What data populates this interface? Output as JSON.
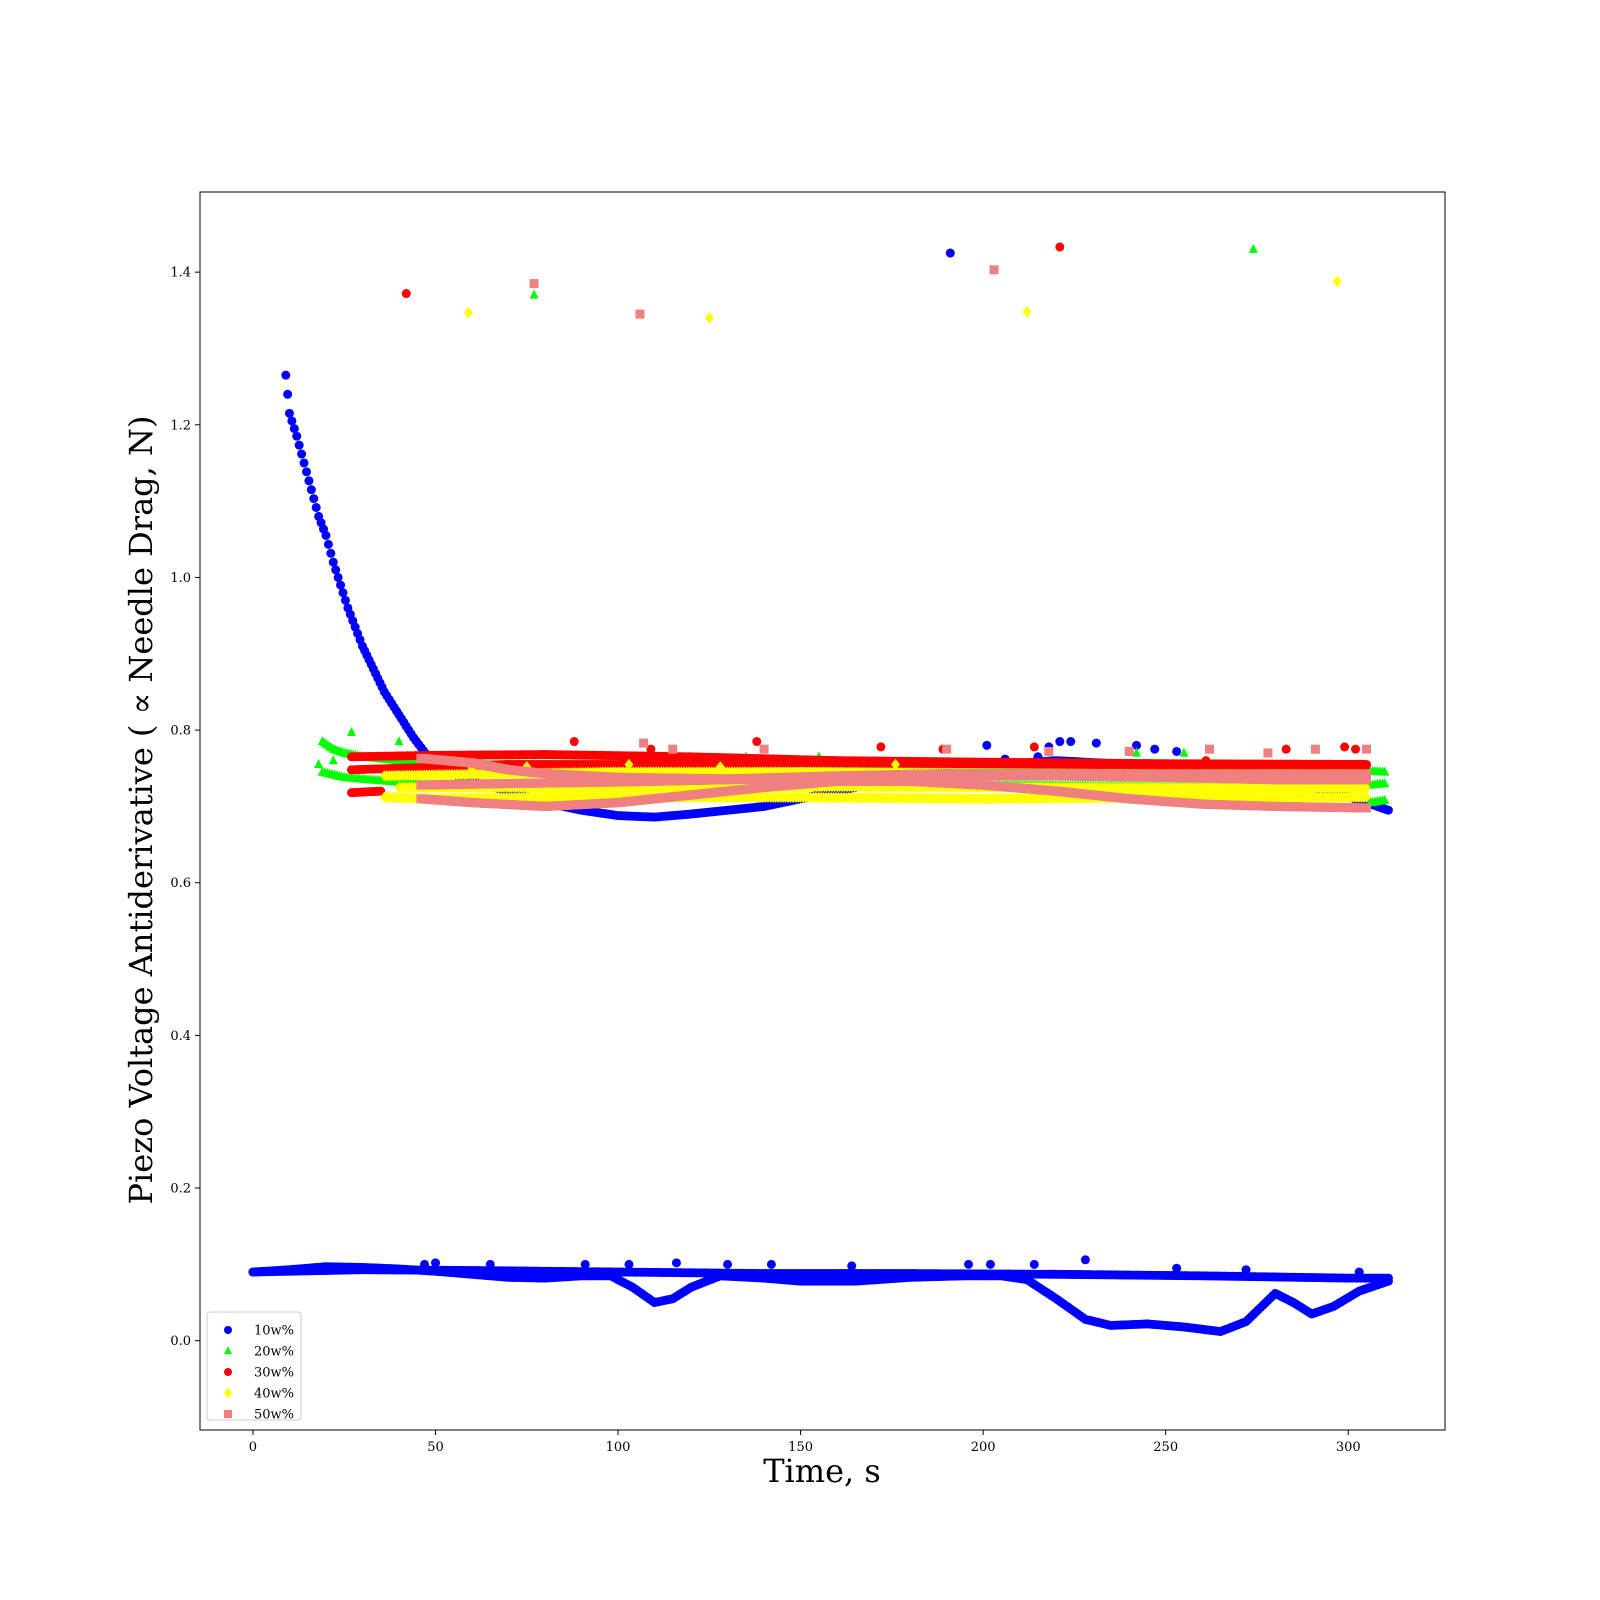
{
  "chart_data": {
    "type": "scatter",
    "title": "",
    "xlabel": "Time, s",
    "ylabel": "Piezo Voltage Antiderivative ( ∝  Needle Drag, N)",
    "xlim": [
      -14.5,
      326.5
    ],
    "ylim": [
      -0.117,
      1.505
    ],
    "xticks": [
      0,
      50,
      100,
      150,
      200,
      250,
      300
    ],
    "xtick_labels": [
      "0",
      "50",
      "100",
      "150",
      "200",
      "250",
      "300"
    ],
    "yticks": [
      0.0,
      0.2,
      0.4,
      0.6,
      0.8,
      1.0,
      1.2,
      1.4
    ],
    "ytick_labels": [
      "0.0",
      "0.2",
      "0.4",
      "0.6",
      "0.8",
      "1.0",
      "1.2",
      "1.4"
    ],
    "grid": false,
    "legend_position": "lower-left",
    "series": [
      {
        "name": "10w%",
        "marker": "circle",
        "color": "#0000ff",
        "traces": [
          [
            [
              9,
              1.265
            ],
            [
              10,
              1.215
            ],
            [
              12,
              1.185
            ],
            [
              14,
              1.15
            ],
            [
              16,
              1.115
            ],
            [
              18,
              1.08
            ],
            [
              20,
              1.055
            ],
            [
              22,
              1.02
            ],
            [
              24,
              0.99
            ],
            [
              26,
              0.96
            ],
            [
              28,
              0.935
            ],
            [
              30,
              0.91
            ],
            [
              33,
              0.88
            ],
            [
              36,
              0.85
            ],
            [
              40,
              0.82
            ],
            [
              44,
              0.79
            ],
            [
              48,
              0.765
            ],
            [
              52,
              0.75
            ],
            [
              56,
              0.74
            ],
            [
              62,
              0.73
            ],
            [
              70,
              0.72
            ],
            [
              80,
              0.705
            ],
            [
              90,
              0.695
            ],
            [
              100,
              0.688
            ],
            [
              110,
              0.686
            ],
            [
              120,
              0.69
            ],
            [
              130,
              0.695
            ],
            [
              140,
              0.7
            ],
            [
              150,
              0.71
            ],
            [
              160,
              0.72
            ],
            [
              175,
              0.735
            ],
            [
              190,
              0.75
            ],
            [
              205,
              0.755
            ],
            [
              220,
              0.76
            ],
            [
              240,
              0.755
            ],
            [
              260,
              0.748
            ],
            [
              280,
              0.735
            ],
            [
              295,
              0.72
            ],
            [
              305,
              0.705
            ],
            [
              311,
              0.695
            ]
          ],
          [
            [
              0,
              0.09
            ],
            [
              10,
              0.093
            ],
            [
              20,
              0.097
            ],
            [
              30,
              0.096
            ],
            [
              40,
              0.094
            ],
            [
              50,
              0.091
            ],
            [
              60,
              0.087
            ],
            [
              70,
              0.083
            ],
            [
              80,
              0.082
            ],
            [
              90,
              0.085
            ],
            [
              98,
              0.085
            ],
            [
              104,
              0.07
            ],
            [
              110,
              0.05
            ],
            [
              115,
              0.055
            ],
            [
              120,
              0.07
            ],
            [
              128,
              0.085
            ],
            [
              140,
              0.082
            ],
            [
              150,
              0.078
            ],
            [
              165,
              0.078
            ],
            [
              180,
              0.083
            ],
            [
              195,
              0.085
            ],
            [
              205,
              0.085
            ],
            [
              212,
              0.08
            ],
            [
              220,
              0.055
            ],
            [
              228,
              0.028
            ],
            [
              235,
              0.02
            ],
            [
              245,
              0.022
            ],
            [
              255,
              0.018
            ],
            [
              265,
              0.012
            ],
            [
              272,
              0.025
            ],
            [
              280,
              0.062
            ],
            [
              285,
              0.05
            ],
            [
              290,
              0.035
            ],
            [
              296,
              0.045
            ],
            [
              303,
              0.065
            ],
            [
              311,
              0.078
            ]
          ],
          [
            [
              0,
              0.09
            ],
            [
              30,
              0.093
            ],
            [
              60,
              0.092
            ],
            [
              100,
              0.09
            ],
            [
              140,
              0.088
            ],
            [
              180,
              0.088
            ],
            [
              220,
              0.087
            ],
            [
              260,
              0.085
            ],
            [
              300,
              0.082
            ],
            [
              311,
              0.082
            ]
          ]
        ],
        "outliers": [
          [
            191,
            1.425
          ],
          [
            201,
            0.78
          ],
          [
            206,
            0.762
          ],
          [
            215,
            0.765
          ],
          [
            218,
            0.778
          ],
          [
            221,
            0.785
          ],
          [
            224,
            0.785
          ],
          [
            231,
            0.783
          ],
          [
            242,
            0.78
          ],
          [
            247,
            0.775
          ],
          [
            253,
            0.772
          ],
          [
            47,
            0.1
          ],
          [
            50,
            0.102
          ],
          [
            65,
            0.1
          ],
          [
            91,
            0.1
          ],
          [
            103,
            0.1
          ],
          [
            116,
            0.102
          ],
          [
            130,
            0.1
          ],
          [
            142,
            0.1
          ],
          [
            164,
            0.098
          ],
          [
            196,
            0.1
          ],
          [
            202,
            0.1
          ],
          [
            214,
            0.1
          ],
          [
            228,
            0.106
          ],
          [
            253,
            0.095
          ],
          [
            272,
            0.093
          ],
          [
            303,
            0.09
          ]
        ]
      },
      {
        "name": "20w%",
        "marker": "triangle",
        "color": "#00ff00",
        "traces": [
          [
            [
              19,
              0.785
            ],
            [
              22,
              0.775
            ],
            [
              25,
              0.77
            ],
            [
              30,
              0.765
            ],
            [
              40,
              0.76
            ],
            [
              60,
              0.755
            ],
            [
              100,
              0.755
            ],
            [
              150,
              0.755
            ],
            [
              200,
              0.752
            ],
            [
              250,
              0.75
            ],
            [
              300,
              0.748
            ],
            [
              310,
              0.745
            ]
          ],
          [
            [
              19,
              0.745
            ],
            [
              25,
              0.738
            ],
            [
              32,
              0.735
            ],
            [
              45,
              0.73
            ],
            [
              70,
              0.728
            ],
            [
              110,
              0.728
            ],
            [
              160,
              0.728
            ],
            [
              210,
              0.728
            ],
            [
              260,
              0.726
            ],
            [
              300,
              0.725
            ],
            [
              310,
              0.73
            ]
          ],
          [
            [
              306,
              0.705
            ],
            [
              310,
              0.708
            ]
          ]
        ],
        "outliers": [
          [
            77,
            1.37
          ],
          [
            274,
            1.43
          ],
          [
            27,
            0.797
          ],
          [
            40,
            0.785
          ],
          [
            22,
            0.76
          ],
          [
            18,
            0.755
          ],
          [
            135,
            0.765
          ],
          [
            155,
            0.765
          ],
          [
            242,
            0.77
          ],
          [
            255,
            0.77
          ],
          [
            302,
            0.742
          ]
        ]
      },
      {
        "name": "30w%",
        "marker": "circle",
        "color": "#ff0000",
        "traces": [
          [
            [
              27,
              0.765
            ],
            [
              50,
              0.767
            ],
            [
              80,
              0.768
            ],
            [
              120,
              0.765
            ],
            [
              160,
              0.76
            ],
            [
              200,
              0.758
            ],
            [
              250,
              0.756
            ],
            [
              305,
              0.755
            ]
          ],
          [
            [
              27,
              0.748
            ],
            [
              40,
              0.75
            ],
            [
              55,
              0.752
            ],
            [
              70,
              0.755
            ],
            [
              100,
              0.755
            ],
            [
              150,
              0.757
            ],
            [
              200,
              0.756
            ],
            [
              250,
              0.754
            ],
            [
              305,
              0.754
            ]
          ],
          [
            [
              27,
              0.718
            ],
            [
              35,
              0.72
            ]
          ]
        ],
        "outliers": [
          [
            42,
            1.372
          ],
          [
            221,
            1.433
          ],
          [
            88,
            0.785
          ],
          [
            109,
            0.775
          ],
          [
            138,
            0.785
          ],
          [
            172,
            0.778
          ],
          [
            189,
            0.775
          ],
          [
            214,
            0.778
          ],
          [
            261,
            0.76
          ],
          [
            283,
            0.775
          ],
          [
            302,
            0.775
          ],
          [
            299,
            0.778
          ]
        ]
      },
      {
        "name": "40w%",
        "marker": "diamond",
        "color": "#ffff00",
        "traces": [
          [
            [
              36,
              0.712
            ],
            [
              50,
              0.71
            ],
            [
              80,
              0.712
            ],
            [
              110,
              0.712
            ],
            [
              150,
              0.712
            ],
            [
              200,
              0.71
            ],
            [
              250,
              0.712
            ],
            [
              305,
              0.712
            ]
          ],
          [
            [
              36,
              0.74
            ],
            [
              60,
              0.742
            ],
            [
              100,
              0.745
            ],
            [
              150,
              0.745
            ],
            [
              200,
              0.743
            ],
            [
              250,
              0.742
            ],
            [
              305,
              0.742
            ]
          ],
          [
            [
              40,
              0.725
            ],
            [
              70,
              0.725
            ],
            [
              110,
              0.724
            ],
            [
              160,
              0.726
            ],
            [
              210,
              0.725
            ],
            [
              260,
              0.724
            ],
            [
              305,
              0.724
            ]
          ]
        ],
        "outliers": [
          [
            59,
            1.347
          ],
          [
            125,
            1.34
          ],
          [
            212,
            1.348
          ],
          [
            297,
            1.388
          ],
          [
            60,
            0.75
          ],
          [
            75,
            0.752
          ],
          [
            103,
            0.755
          ],
          [
            128,
            0.752
          ],
          [
            176,
            0.755
          ]
        ]
      },
      {
        "name": "50w%",
        "marker": "square",
        "color": "#f08080",
        "traces": [
          [
            [
              46,
              0.763
            ],
            [
              60,
              0.757
            ],
            [
              70,
              0.748
            ],
            [
              80,
              0.743
            ],
            [
              100,
              0.738
            ],
            [
              130,
              0.736
            ],
            [
              160,
              0.74
            ],
            [
              190,
              0.743
            ],
            [
              220,
              0.743
            ],
            [
              260,
              0.742
            ],
            [
              305,
              0.742
            ]
          ],
          [
            [
              46,
              0.71
            ],
            [
              60,
              0.705
            ],
            [
              80,
              0.7
            ],
            [
              100,
              0.705
            ],
            [
              120,
              0.715
            ],
            [
              140,
              0.725
            ],
            [
              160,
              0.733
            ],
            [
              180,
              0.733
            ],
            [
              200,
              0.728
            ],
            [
              220,
              0.72
            ],
            [
              240,
              0.71
            ],
            [
              260,
              0.703
            ],
            [
              280,
              0.7
            ],
            [
              305,
              0.698
            ]
          ],
          [
            [
              46,
              0.728
            ],
            [
              70,
              0.73
            ],
            [
              100,
              0.732
            ],
            [
              130,
              0.735
            ],
            [
              160,
              0.738
            ],
            [
              190,
              0.74
            ],
            [
              220,
              0.74
            ],
            [
              250,
              0.738
            ],
            [
              280,
              0.735
            ],
            [
              305,
              0.735
            ]
          ]
        ],
        "outliers": [
          [
            77,
            1.385
          ],
          [
            106,
            1.345
          ],
          [
            203,
            1.403
          ],
          [
            107,
            0.783
          ],
          [
            115,
            0.775
          ],
          [
            140,
            0.775
          ],
          [
            190,
            0.775
          ],
          [
            218,
            0.772
          ],
          [
            240,
            0.772
          ],
          [
            262,
            0.775
          ],
          [
            278,
            0.77
          ],
          [
            291,
            0.775
          ],
          [
            305,
            0.775
          ]
        ]
      }
    ]
  }
}
